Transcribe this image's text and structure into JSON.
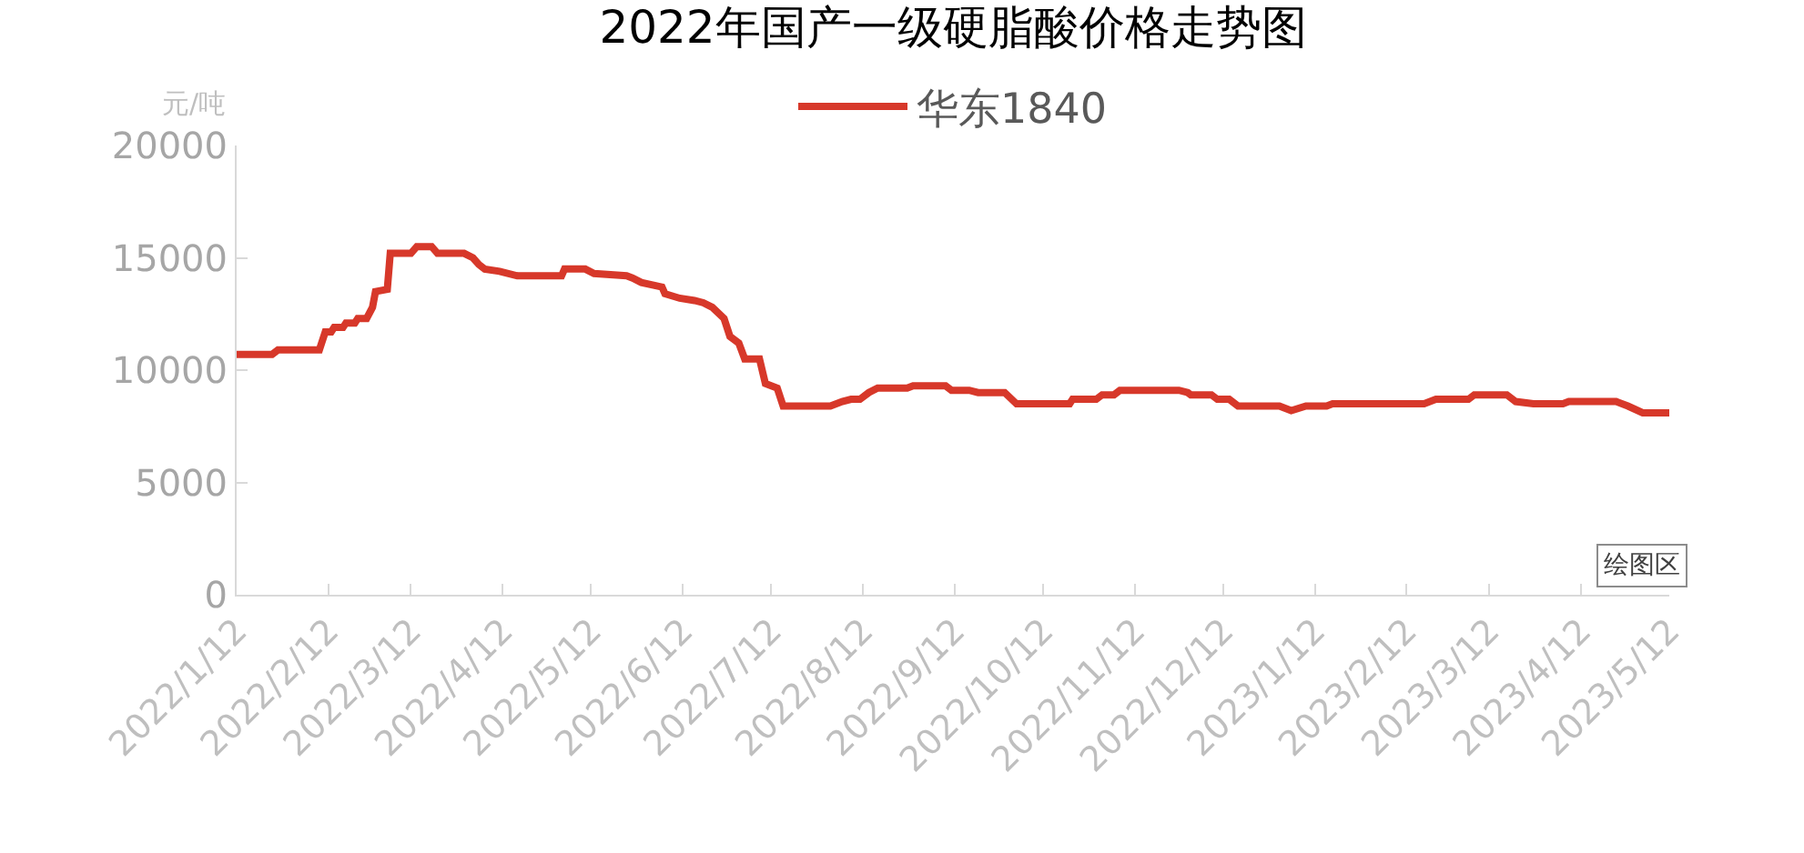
{
  "chart_data": {
    "type": "line",
    "title": "2022年国产一级硬脂酸价格走势图",
    "ylabel": "元/吨",
    "legend": "top",
    "grid": false,
    "marker": "none",
    "line_style": "solid",
    "x": [
      "2022-01-12",
      "2022-01-24",
      "2022-01-26",
      "2022-02-09",
      "2022-02-11",
      "2022-02-13",
      "2022-02-14",
      "2022-02-17",
      "2022-02-18",
      "2022-02-21",
      "2022-02-22",
      "2022-02-25",
      "2022-02-27",
      "2022-02-28",
      "2022-03-04",
      "2022-03-05",
      "2022-03-12",
      "2022-03-14",
      "2022-03-19",
      "2022-03-21",
      "2022-03-30",
      "2022-04-02",
      "2022-04-04",
      "2022-04-06",
      "2022-04-11",
      "2022-04-17",
      "2022-05-02",
      "2022-05-03",
      "2022-05-10",
      "2022-05-13",
      "2022-05-24",
      "2022-05-26",
      "2022-05-29",
      "2022-06-05",
      "2022-06-06",
      "2022-06-11",
      "2022-06-16",
      "2022-06-19",
      "2022-06-22",
      "2022-06-26",
      "2022-06-28",
      "2022-07-01",
      "2022-07-03",
      "2022-07-08",
      "2022-07-10",
      "2022-07-14",
      "2022-07-16",
      "2022-08-01",
      "2022-08-05",
      "2022-08-08",
      "2022-08-11",
      "2022-08-14",
      "2022-08-17",
      "2022-08-27",
      "2022-08-29",
      "2022-09-09",
      "2022-09-11",
      "2022-09-17",
      "2022-09-20",
      "2022-09-29",
      "2022-10-03",
      "2022-10-21",
      "2022-10-22",
      "2022-10-30",
      "2022-11-01",
      "2022-11-05",
      "2022-11-07",
      "2022-11-27",
      "2022-11-30",
      "2022-12-01",
      "2022-12-08",
      "2022-12-10",
      "2022-12-14",
      "2022-12-17",
      "2022-12-31",
      "2023-01-04",
      "2023-01-09",
      "2023-01-16",
      "2023-01-18",
      "2023-02-18",
      "2023-02-22",
      "2023-03-05",
      "2023-03-07",
      "2023-03-18",
      "2023-03-21",
      "2023-03-27",
      "2023-04-06",
      "2023-04-08",
      "2023-04-24",
      "2023-04-28",
      "2023-05-03",
      "2023-05-12"
    ],
    "series": [
      {
        "name": "华东1840",
        "color": "#d7382a",
        "values": [
          10700,
          10700,
          10900,
          10900,
          11700,
          11700,
          11900,
          11900,
          12100,
          12100,
          12300,
          12300,
          12800,
          13500,
          13600,
          15200,
          15200,
          15500,
          15500,
          15200,
          15200,
          15000,
          14700,
          14500,
          14400,
          14200,
          14200,
          14500,
          14500,
          14300,
          14200,
          14100,
          13900,
          13700,
          13400,
          13200,
          13100,
          13000,
          12800,
          12300,
          11500,
          11200,
          10500,
          10500,
          9400,
          9200,
          8400,
          8400,
          8600,
          8700,
          8700,
          9000,
          9200,
          9200,
          9300,
          9300,
          9100,
          9100,
          9000,
          9000,
          8500,
          8500,
          8700,
          8700,
          8900,
          8900,
          9100,
          9100,
          9000,
          8900,
          8900,
          8700,
          8700,
          8400,
          8400,
          8200,
          8400,
          8400,
          8500,
          8500,
          8700,
          8700,
          8900,
          8900,
          8600,
          8500,
          8500,
          8600,
          8600,
          8400,
          8100,
          8100
        ]
      }
    ],
    "xlim": [
      "2022-01-12",
      "2023-05-12"
    ],
    "xticks": [
      {
        "value": "2022-01-12",
        "label": "2022/1/12"
      },
      {
        "value": "2022-02-12",
        "label": "2022/2/12"
      },
      {
        "value": "2022-03-12",
        "label": "2022/3/12"
      },
      {
        "value": "2022-04-12",
        "label": "2022/4/12"
      },
      {
        "value": "2022-05-12",
        "label": "2022/5/12"
      },
      {
        "value": "2022-06-12",
        "label": "2022/6/12"
      },
      {
        "value": "2022-07-12",
        "label": "2022/7/12"
      },
      {
        "value": "2022-08-12",
        "label": "2022/8/12"
      },
      {
        "value": "2022-09-12",
        "label": "2022/9/12"
      },
      {
        "value": "2022-10-12",
        "label": "2022/10/12"
      },
      {
        "value": "2022-11-12",
        "label": "2022/11/12"
      },
      {
        "value": "2022-12-12",
        "label": "2022/12/12"
      },
      {
        "value": "2023-01-12",
        "label": "2023/1/12"
      },
      {
        "value": "2023-02-12",
        "label": "2023/2/12"
      },
      {
        "value": "2023-03-12",
        "label": "2023/3/12"
      },
      {
        "value": "2023-04-12",
        "label": "2023/4/12"
      },
      {
        "value": "2023-05-12",
        "label": "2023/5/12"
      }
    ],
    "ylim": [
      0,
      20000
    ],
    "yticks": [
      0,
      5000,
      10000,
      15000,
      20000
    ],
    "annotations": [
      "绘图区"
    ]
  }
}
